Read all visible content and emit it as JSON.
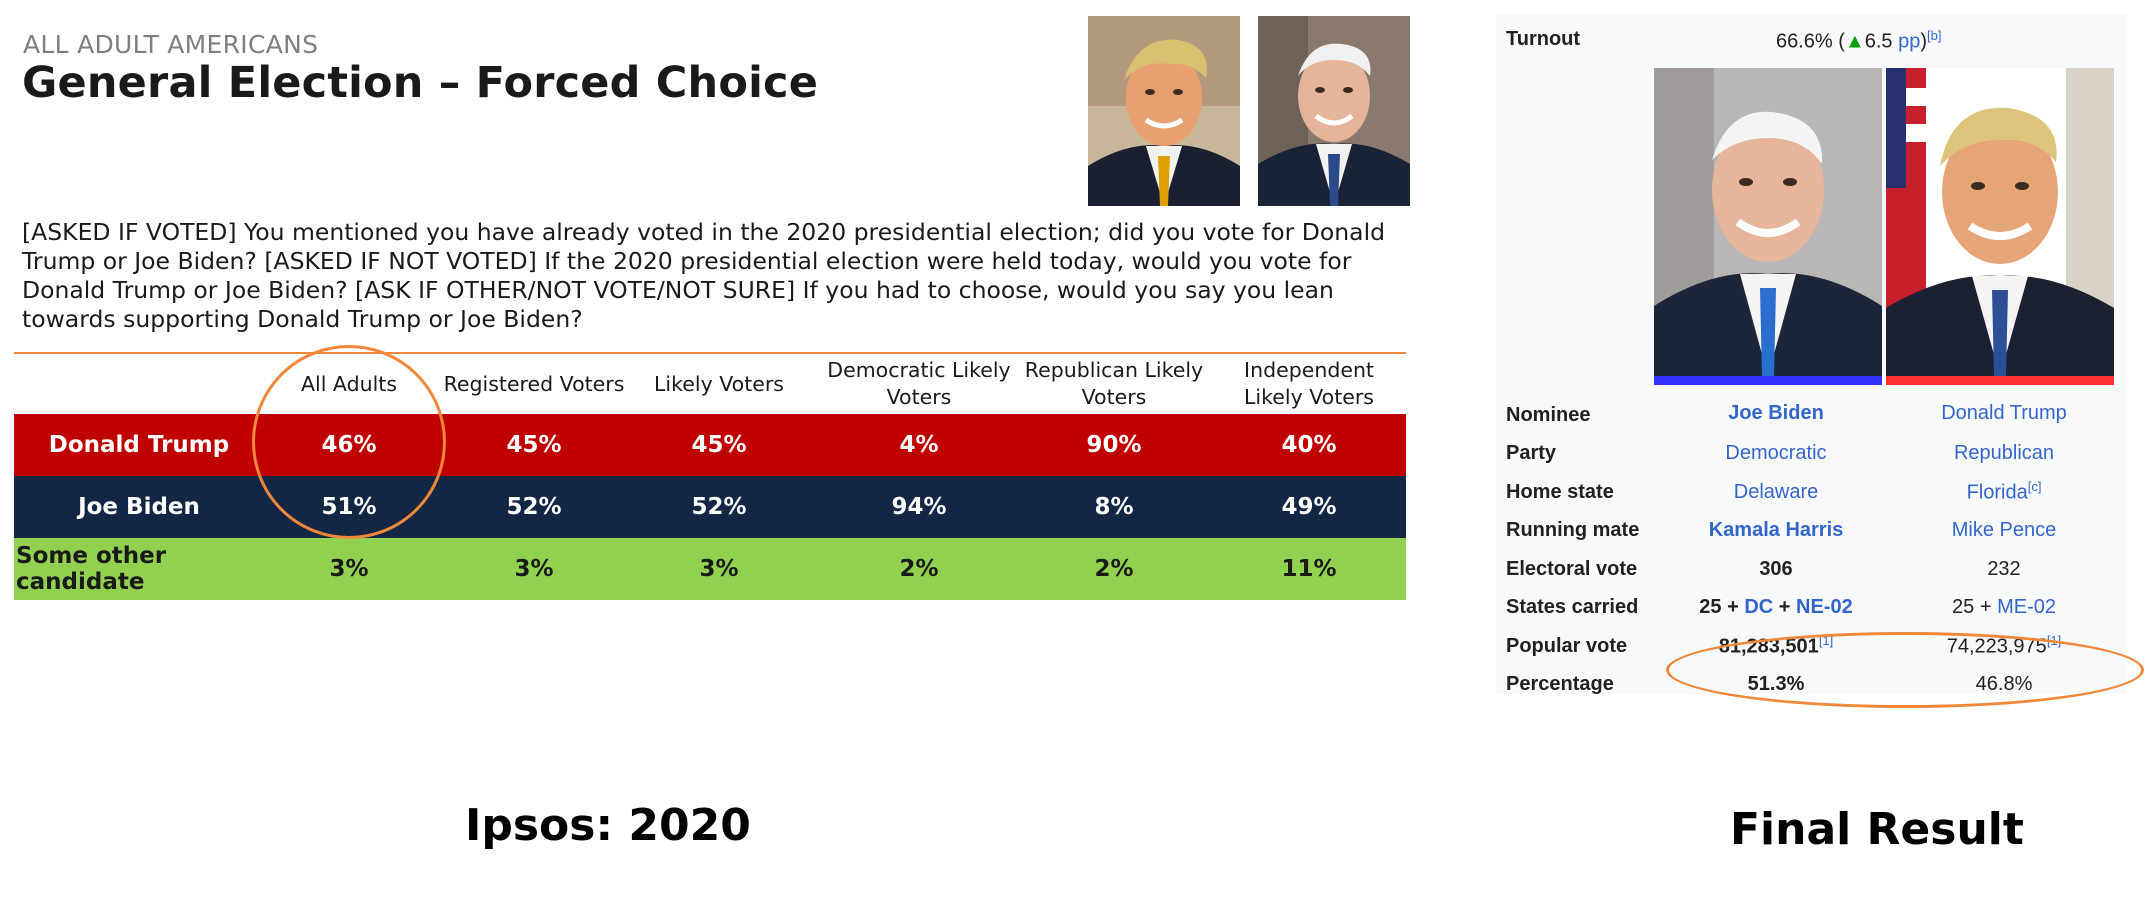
{
  "ipsos": {
    "subtitle": "ALL ADULT AMERICANS",
    "title": "General Election – Forced Choice",
    "question": "[ASKED IF VOTED] You mentioned you have already voted in the 2020 presidential election; did you vote for Donald Trump or Joe Biden? [ASKED IF NOT VOTED] If the 2020 presidential election were held today, would you vote for Donald Trump or Joe Biden? [ASK IF OTHER/NOT VOTE/NOT SURE] If you had to choose, would you say you lean towards supporting  Donald Trump or Joe Biden?",
    "columns": [
      "All Adults",
      "Registered Voters",
      "Likely Voters",
      "Democratic Likely Voters",
      "Republican Likely Voters",
      "Independent Likely Voters"
    ],
    "rows": [
      {
        "label": "Donald Trump",
        "values": [
          "46%",
          "45%",
          "45%",
          "4%",
          "90%",
          "40%"
        ],
        "color": "#c00000"
      },
      {
        "label": "Joe Biden",
        "values": [
          "51%",
          "52%",
          "52%",
          "94%",
          "8%",
          "49%"
        ],
        "color": "#132644"
      },
      {
        "label": "Some other candidate",
        "values": [
          "3%",
          "3%",
          "3%",
          "2%",
          "2%",
          "11%"
        ],
        "color": "#92d050"
      }
    ],
    "caption": "Ipsos: 2020"
  },
  "wiki": {
    "turnout_label": "Turnout",
    "turnout_value": "66.6% (",
    "turnout_change": "6.5",
    "turnout_unit": "pp",
    "turnout_close": ")",
    "turnout_note": "[b]",
    "rows": {
      "nominee": {
        "label": "Nominee",
        "c1": "Joe Biden",
        "c2": "Donald Trump"
      },
      "party": {
        "label": "Party",
        "c1": "Democratic",
        "c2": "Republican"
      },
      "home_state": {
        "label": "Home state",
        "c1": "Delaware",
        "c2": "Florida",
        "c2_note": "[c]"
      },
      "running_mate": {
        "label": "Running mate",
        "c1": "Kamala Harris",
        "c2": "Mike Pence"
      },
      "electoral_vote": {
        "label": "Electoral vote",
        "c1": "306",
        "c2": "232"
      },
      "states_carried": {
        "label": "States carried",
        "c1_a": "25 + ",
        "c1_b": "DC",
        "c1_c": " + ",
        "c1_d": "NE-02",
        "c2_a": "25 + ",
        "c2_b": "ME-02"
      },
      "popular_vote": {
        "label": "Popular vote",
        "c1": "81,283,501",
        "c1_note": "[1]",
        "c2": "74,223,975",
        "c2_note": "[1]"
      },
      "percentage": {
        "label": "Percentage",
        "c1": "51.3%",
        "c2": "46.8%"
      }
    },
    "caption": "Final Result"
  },
  "colors": {
    "accent_orange": "#f0883a",
    "trump_red": "#c00000",
    "biden_navy": "#132644",
    "other_green": "#92d050",
    "dem_blue": "#3333ff",
    "rep_red": "#ff3333",
    "link": "#3366cc"
  },
  "icons": [
    "portrait-trump",
    "portrait-biden",
    "green-up-triangle-icon"
  ]
}
